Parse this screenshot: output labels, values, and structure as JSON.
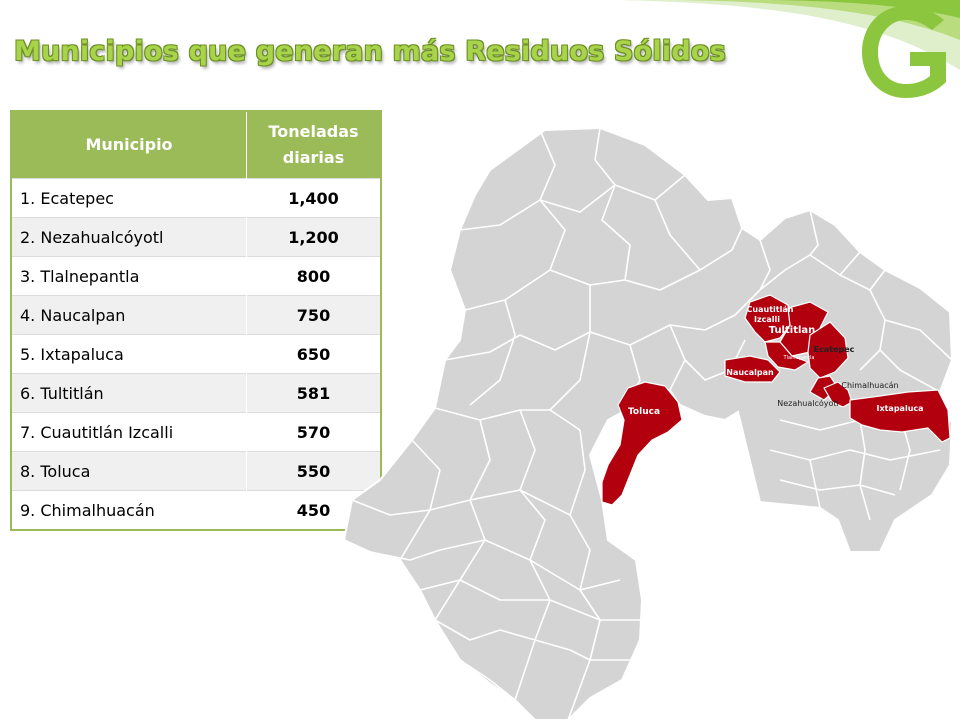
{
  "title": "Municipios que generan más Residuos Sólidos",
  "table": {
    "headers": [
      "Municipio",
      "Toneladas diarias"
    ],
    "rows": [
      {
        "municipio": "1. Ecatepec",
        "toneladas": "1,400"
      },
      {
        "municipio": "2. Nezahualcóyotl",
        "toneladas": "1,200"
      },
      {
        "municipio": "3. Tlalnepantla",
        "toneladas": "800"
      },
      {
        "municipio": "4. Naucalpan",
        "toneladas": "750"
      },
      {
        "municipio": "5. Ixtapaluca",
        "toneladas": "650"
      },
      {
        "municipio": "6. Tultitlán",
        "toneladas": "581"
      },
      {
        "municipio": "7. Cuautitlán Izcalli",
        "toneladas": "570"
      },
      {
        "municipio": "8. Toluca",
        "toneladas": "550"
      },
      {
        "municipio": "9. Chimalhuacán",
        "toneladas": "450"
      }
    ]
  },
  "map": {
    "labels": {
      "cuautitlan_1": "Cuautitlán",
      "cuautitlan_2": "Izcalli",
      "tultitlan": "Tultitlan",
      "tlalnepantla": "Tlalnepantla",
      "ecatepec": "Ecatepec",
      "naucalpan": "Naucalpan",
      "chimalhuacan": "Chimalhuacán",
      "nezahualcoyotl": "Nezahualcóyotl",
      "ixtapaluca": "Ixtapaluca",
      "toluca": "Toluca"
    },
    "colors": {
      "base": "#d4d4d4",
      "border": "#ffffff",
      "highlight": "#b3000f"
    }
  },
  "colors": {
    "accent": "#9bbb59",
    "title": "#a8d34a",
    "logo": "#8cc63f"
  }
}
